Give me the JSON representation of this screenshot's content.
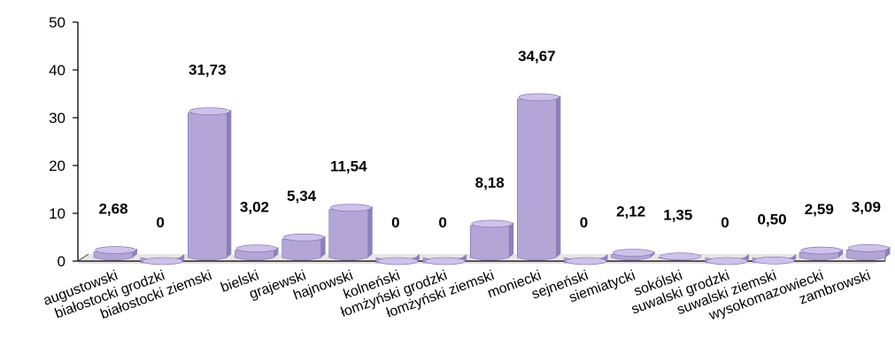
{
  "chart_data": {
    "type": "bar",
    "categories": [
      "augustowski",
      "białostocki grodzki",
      "białostocki ziemski",
      "bielski",
      "grajewski",
      "hajnowski",
      "kolneński",
      "łomżyński grodzki",
      "łomżyński ziemski",
      "moniecki",
      "sejneński",
      "siemiatycki",
      "sokólski",
      "suwalski grodzki",
      "suwalski ziemski",
      "wysokomazowiecki",
      "zambrowski"
    ],
    "values": [
      2.68,
      0,
      31.73,
      3.02,
      5.34,
      11.54,
      0,
      0,
      8.18,
      34.67,
      0,
      2.12,
      1.35,
      0,
      0.5,
      2.59,
      3.09
    ],
    "data_labels": [
      "2,68",
      "0",
      "31,73",
      "3,02",
      "5,34",
      "11,54",
      "0",
      "0",
      "8,18",
      "34,67",
      "0",
      "2,12",
      "1,35",
      "0",
      "0,50",
      "2,59",
      "3,09"
    ],
    "y_ticks": [
      "0",
      "10",
      "20",
      "30",
      "40",
      "50"
    ],
    "ylim": [
      0,
      50
    ],
    "grid": false,
    "legend": "none",
    "bar_color": "#b3a5d6",
    "bar_top_color": "#cdc2ea",
    "bar_side_color": "#8e80b8"
  }
}
